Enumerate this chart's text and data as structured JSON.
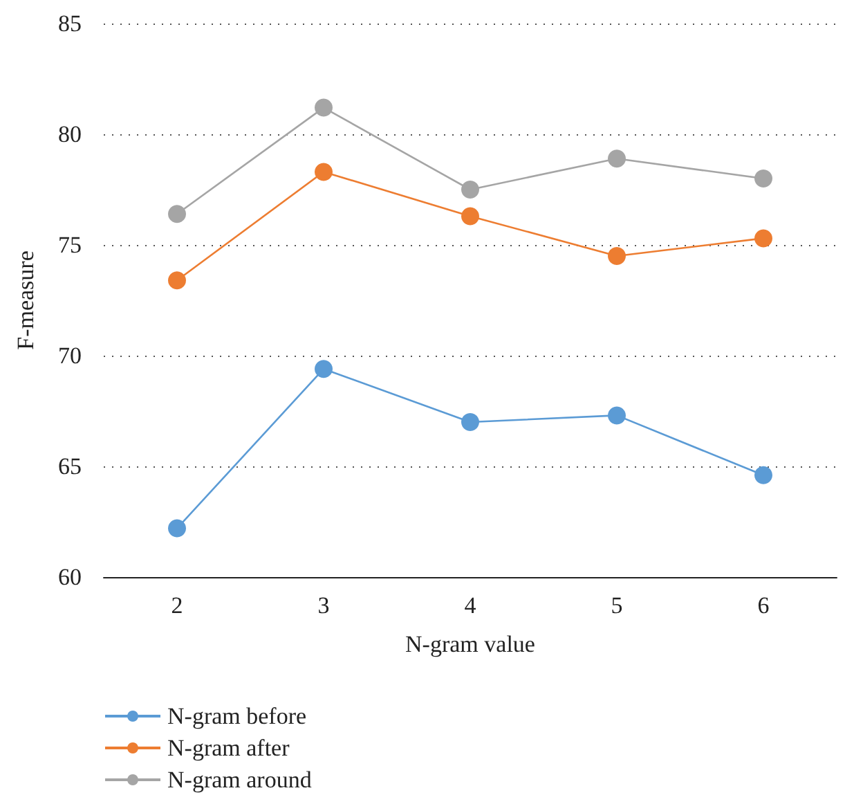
{
  "chart_data": {
    "type": "line",
    "xlabel": "N-gram value",
    "ylabel": "F-measure",
    "categories": [
      "2",
      "3",
      "4",
      "5",
      "6"
    ],
    "series": [
      {
        "name": "N-gram before",
        "color": "#5b9bd5",
        "values": [
          62.2,
          69.4,
          67.0,
          67.3,
          64.6
        ]
      },
      {
        "name": "N-gram after",
        "color": "#ed7d31",
        "values": [
          73.4,
          78.3,
          76.3,
          74.5,
          75.3
        ]
      },
      {
        "name": "N-gram around",
        "color": "#a5a5a5",
        "values": [
          76.4,
          81.2,
          77.5,
          78.9,
          78.0
        ]
      }
    ],
    "ylim": [
      60,
      85
    ],
    "yticks": [
      60,
      65,
      70,
      75,
      80,
      85
    ],
    "grid": "y",
    "legend": "bottom left",
    "marker": "circle",
    "line_style": "solid"
  }
}
